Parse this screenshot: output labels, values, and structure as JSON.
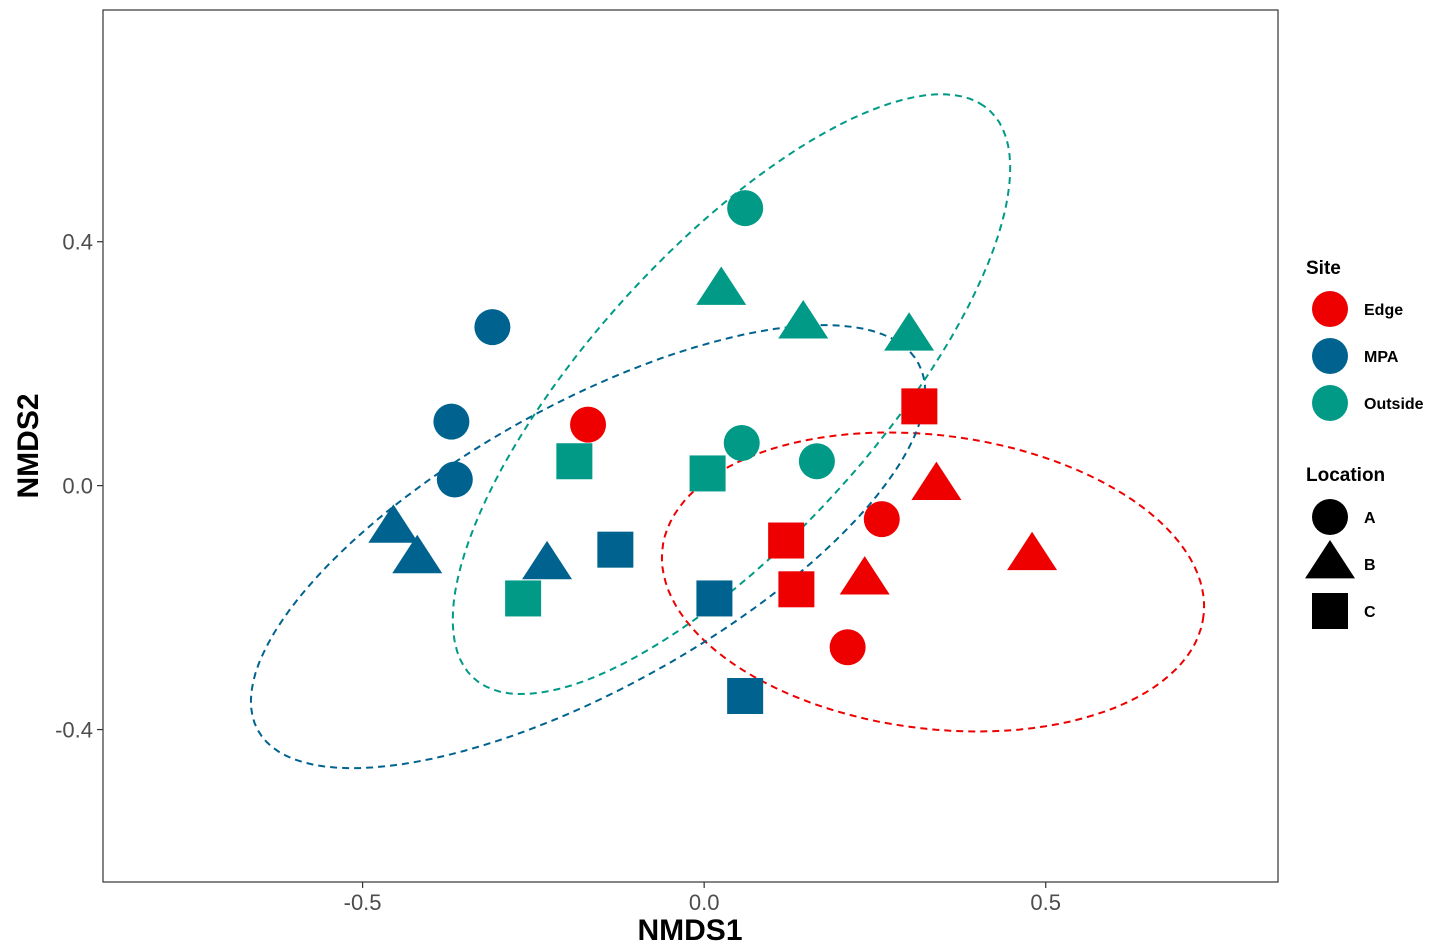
{
  "chart_data": {
    "type": "scatter",
    "xlabel": "NMDS1",
    "ylabel": "NMDS2",
    "xlim": [
      -0.88,
      0.84
    ],
    "ylim": [
      -0.65,
      0.78
    ],
    "x_ticks": [
      {
        "value": -0.5,
        "label": "-0.5"
      },
      {
        "value": 0.0,
        "label": "0.0"
      },
      {
        "value": 0.5,
        "label": "0.5"
      }
    ],
    "y_ticks": [
      {
        "value": 0.4,
        "label": "0.4"
      },
      {
        "value": 0.0,
        "label": "0.0"
      },
      {
        "value": -0.4,
        "label": "-0.4"
      }
    ],
    "grid": false,
    "legend_position": "right",
    "site_legend": {
      "title": "Site",
      "items": [
        {
          "name": "Edge",
          "color": "#ee0000"
        },
        {
          "name": "MPA",
          "color": "#00638f"
        },
        {
          "name": "Outside",
          "color": "#009a87"
        }
      ]
    },
    "location_legend": {
      "title": "Location",
      "items": [
        {
          "name": "A",
          "shape": "circle"
        },
        {
          "name": "B",
          "shape": "triangle"
        },
        {
          "name": "C",
          "shape": "square"
        }
      ]
    },
    "points": [
      {
        "site": "Edge",
        "location": "A",
        "x": -0.17,
        "y": 0.1
      },
      {
        "site": "Edge",
        "location": "A",
        "x": 0.26,
        "y": -0.055
      },
      {
        "site": "Edge",
        "location": "A",
        "x": 0.21,
        "y": -0.265
      },
      {
        "site": "Edge",
        "location": "B",
        "x": 0.34,
        "y": 0.0
      },
      {
        "site": "Edge",
        "location": "B",
        "x": 0.48,
        "y": -0.115
      },
      {
        "site": "Edge",
        "location": "B",
        "x": 0.235,
        "y": -0.155
      },
      {
        "site": "Edge",
        "location": "C",
        "x": 0.315,
        "y": 0.13
      },
      {
        "site": "Edge",
        "location": "C",
        "x": 0.12,
        "y": -0.09
      },
      {
        "site": "Edge",
        "location": "C",
        "x": 0.135,
        "y": -0.17
      },
      {
        "site": "MPA",
        "location": "A",
        "x": -0.31,
        "y": 0.26
      },
      {
        "site": "MPA",
        "location": "A",
        "x": -0.37,
        "y": 0.105
      },
      {
        "site": "MPA",
        "location": "A",
        "x": -0.365,
        "y": 0.01
      },
      {
        "site": "MPA",
        "location": "B",
        "x": -0.455,
        "y": -0.07
      },
      {
        "site": "MPA",
        "location": "B",
        "x": -0.42,
        "y": -0.12
      },
      {
        "site": "MPA",
        "location": "B",
        "x": -0.23,
        "y": -0.13
      },
      {
        "site": "MPA",
        "location": "C",
        "x": -0.13,
        "y": -0.105
      },
      {
        "site": "MPA",
        "location": "C",
        "x": 0.015,
        "y": -0.185
      },
      {
        "site": "MPA",
        "location": "C",
        "x": 0.06,
        "y": -0.345
      },
      {
        "site": "Outside",
        "location": "A",
        "x": 0.06,
        "y": 0.455
      },
      {
        "site": "Outside",
        "location": "A",
        "x": 0.055,
        "y": 0.07
      },
      {
        "site": "Outside",
        "location": "A",
        "x": 0.165,
        "y": 0.04
      },
      {
        "site": "Outside",
        "location": "B",
        "x": 0.025,
        "y": 0.32
      },
      {
        "site": "Outside",
        "location": "B",
        "x": 0.145,
        "y": 0.265
      },
      {
        "site": "Outside",
        "location": "B",
        "x": 0.3,
        "y": 0.245
      },
      {
        "site": "Outside",
        "location": "C",
        "x": -0.19,
        "y": 0.04
      },
      {
        "site": "Outside",
        "location": "C",
        "x": 0.005,
        "y": 0.02
      },
      {
        "site": "Outside",
        "location": "C",
        "x": -0.265,
        "y": -0.185
      }
    ],
    "ellipses": [
      {
        "site": "Edge",
        "center": [
          0.335,
          -0.158
        ],
        "semi_axes": [
          0.4,
          0.24
        ],
        "angle_deg": -9,
        "style": "dashed"
      },
      {
        "site": "MPA",
        "center": [
          -0.17,
          -0.1
        ],
        "semi_axes": [
          0.57,
          0.225
        ],
        "angle_deg": 33,
        "style": "dashed"
      },
      {
        "site": "Outside",
        "center": [
          0.04,
          0.15
        ],
        "semi_axes": [
          0.6,
          0.22
        ],
        "angle_deg": 52,
        "style": "dashed"
      }
    ]
  }
}
